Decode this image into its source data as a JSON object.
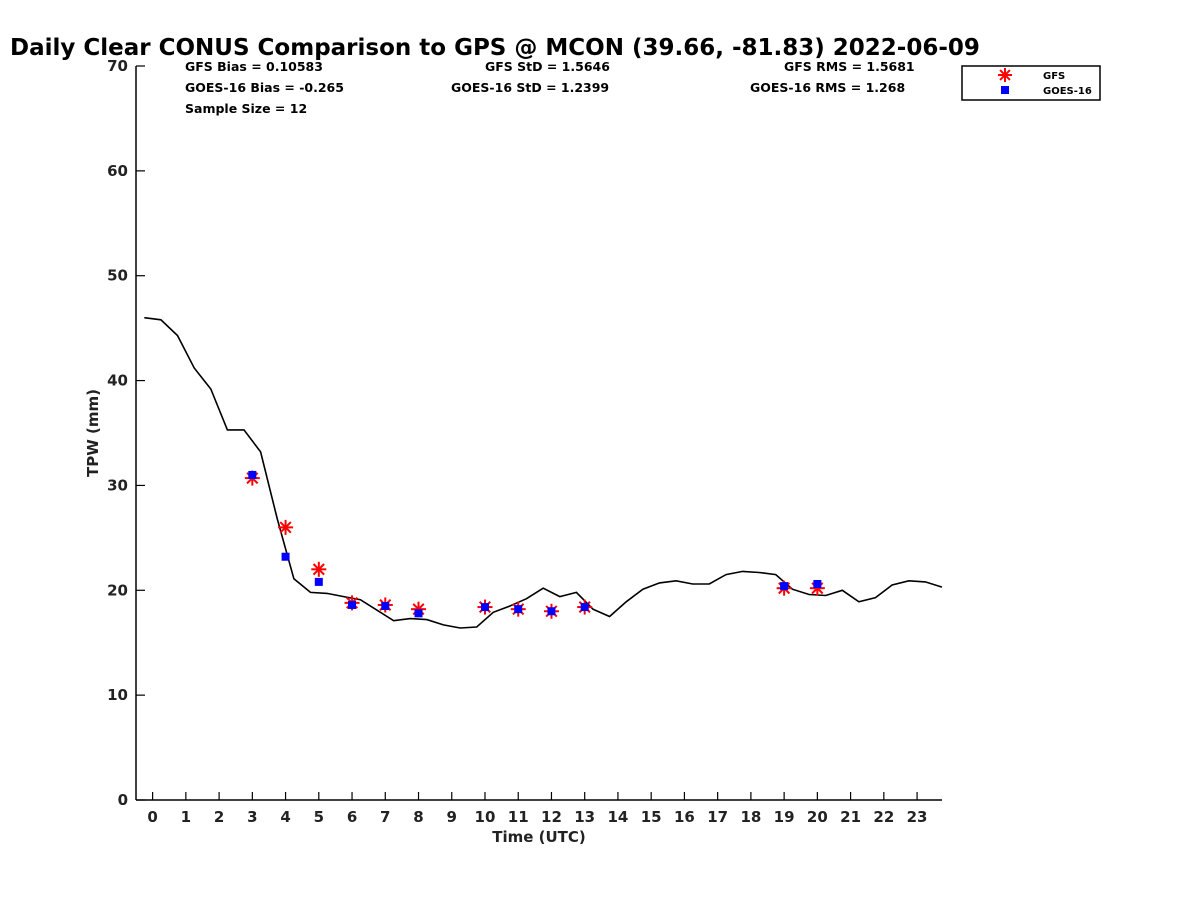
{
  "chart_data": {
    "type": "line",
    "title": "Daily Clear CONUS Comparison to GPS @ MCON (39.66, -81.83) 2022-06-09",
    "xlabel": "Time (UTC)",
    "ylabel": "TPW (mm)",
    "xlim": [
      -0.5,
      23.75
    ],
    "ylim": [
      0,
      70
    ],
    "xticks": [
      "0",
      "1",
      "2",
      "3",
      "4",
      "5",
      "6",
      "7",
      "8",
      "9",
      "10",
      "11",
      "12",
      "13",
      "14",
      "15",
      "16",
      "17",
      "18",
      "19",
      "20",
      "21",
      "22",
      "23"
    ],
    "yticks": [
      "0",
      "10",
      "20",
      "30",
      "40",
      "50",
      "60",
      "70"
    ],
    "grid": false,
    "legend_position": "top-right",
    "stats": {
      "gfs_bias": "GFS Bias = 0.10583",
      "gfs_std": "GFS StD = 1.5646",
      "gfs_rms": "GFS RMS = 1.5681",
      "goes_bias": "GOES-16 Bias = -0.265",
      "goes_std": "GOES-16 StD = 1.2399",
      "goes_rms": "GOES-16 RMS = 1.268",
      "sample_size": "Sample Size = 12"
    },
    "series": [
      {
        "type": "line",
        "color": "#000000",
        "x": [
          -0.25,
          0.25,
          0.75,
          1.25,
          1.75,
          2.25,
          2.75,
          3.25,
          3.75,
          4.25,
          4.75,
          5.25,
          5.75,
          6.25,
          6.75,
          7.25,
          7.75,
          8.25,
          8.75,
          9.25,
          9.75,
          10.25,
          10.75,
          11.25,
          11.75,
          12.25,
          12.75,
          13.25,
          13.75,
          14.25,
          14.75,
          15.25,
          15.75,
          16.25,
          16.75,
          17.25,
          17.75,
          18.25,
          18.75,
          19.25,
          19.75,
          20.25,
          20.75,
          21.25,
          21.75,
          22.25,
          22.75,
          23.25,
          23.75
        ],
        "y": [
          46.0,
          45.8,
          44.3,
          41.2,
          39.2,
          35.3,
          35.3,
          33.2,
          26.8,
          21.1,
          19.8,
          19.7,
          19.4,
          19.1,
          18.1,
          17.1,
          17.3,
          17.2,
          16.7,
          16.4,
          16.5,
          17.9,
          18.5,
          19.2,
          20.2,
          19.4,
          19.8,
          18.2,
          17.5,
          18.9,
          20.1,
          20.7,
          20.9,
          20.6,
          20.6,
          21.5,
          21.8,
          21.7,
          21.5,
          20.1,
          19.6,
          19.5,
          20.0,
          18.9,
          19.3,
          20.5,
          20.9,
          20.8,
          20.3
        ]
      },
      {
        "name": "GFS",
        "type": "scatter",
        "marker": "asterisk",
        "color": "#ff0000",
        "x": [
          3,
          4,
          5,
          6,
          7,
          8,
          10,
          11,
          12,
          13,
          19,
          20
        ],
        "y": [
          30.7,
          26.0,
          22.0,
          18.8,
          18.6,
          18.2,
          18.4,
          18.2,
          18.0,
          18.4,
          20.2,
          20.2
        ]
      },
      {
        "name": "GOES-16",
        "type": "scatter",
        "marker": "square",
        "color": "#0000ff",
        "x": [
          3,
          4,
          5,
          6,
          7,
          8,
          10,
          11,
          12,
          13,
          19,
          20
        ],
        "y": [
          31.0,
          23.2,
          20.8,
          18.6,
          18.5,
          17.8,
          18.4,
          18.2,
          18.0,
          18.4,
          20.4,
          20.6
        ]
      }
    ]
  }
}
